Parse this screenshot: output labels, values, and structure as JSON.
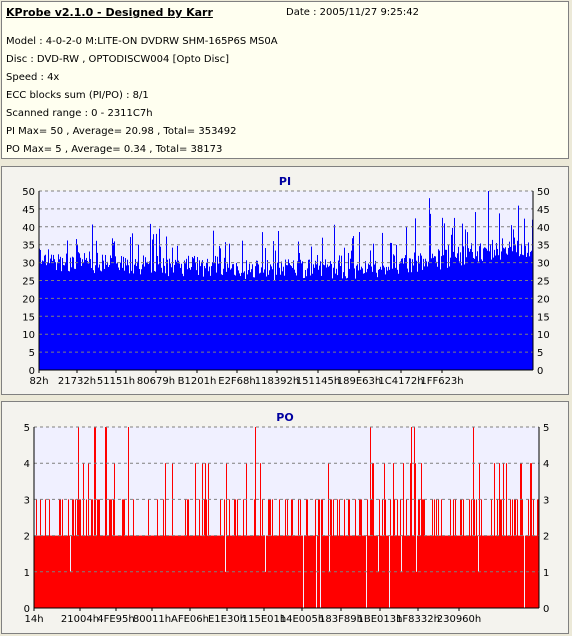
{
  "header": {
    "title": "KProbe v2.1.0 - Designed by Karr",
    "date": "Date : 2005/11/27 9:25:42",
    "lines": [
      "Model : 4-0-2-0 M:LITE-ON DVDRW SHM-165P6S MS0A",
      "Disc : DVD-RW , OPTODISCW004 [Opto Disc]",
      "Speed : 4x",
      "ECC blocks sum (PI/PO) : 8/1",
      "Scanned range : 0 - 2311C7h",
      "PI Max= 50 , Average= 20.98 , Total= 353492",
      "PO Max= 5 , Average= 0.34 , Total= 38173"
    ]
  },
  "colors": {
    "pi": "#0000ff",
    "po": "#ff0000",
    "plot_bg": "#f0f0ff",
    "grid": "#7f7f7f"
  },
  "chart_data": [
    {
      "type": "bar",
      "title": "PI",
      "x_tick_labels": [
        "82h",
        "21732h",
        "51151h",
        "80679h",
        "B1201h",
        "E2F68h",
        "118392h",
        "151145h",
        "189E63h",
        "1C4172h",
        "1FF623h"
      ],
      "ylim": [
        0,
        50
      ],
      "y_ticks": [
        0,
        5,
        10,
        15,
        20,
        25,
        30,
        35,
        40,
        45,
        50
      ],
      "grid": true,
      "max": 50,
      "average": 20.98,
      "profile_x": [
        0,
        0.05,
        0.15,
        0.25,
        0.35,
        0.45,
        0.55,
        0.6,
        0.7,
        0.75,
        0.82,
        0.9,
        0.95,
        1.0
      ],
      "profile_base": [
        29,
        30,
        30,
        29,
        29,
        28,
        28,
        28,
        29,
        30,
        31,
        33,
        34,
        34
      ],
      "profile_peak": [
        38,
        40,
        40,
        38,
        38,
        37,
        37,
        38,
        40,
        41,
        43,
        45,
        46,
        46
      ]
    },
    {
      "type": "bar",
      "title": "PO",
      "x_tick_labels": [
        "14h",
        "21004h",
        "4FE95h",
        "80011h",
        "AFE06h",
        "E1E30h",
        "115E01h",
        "14E005h",
        "183F89h",
        "1BE013h",
        "1F8332h",
        "230960h"
      ],
      "ylim": [
        0,
        5
      ],
      "y_ticks": [
        0,
        1,
        2,
        3,
        4,
        5
      ],
      "grid": true,
      "max": 5,
      "average": 0.34,
      "levels": [
        2,
        3,
        4,
        5
      ]
    }
  ]
}
